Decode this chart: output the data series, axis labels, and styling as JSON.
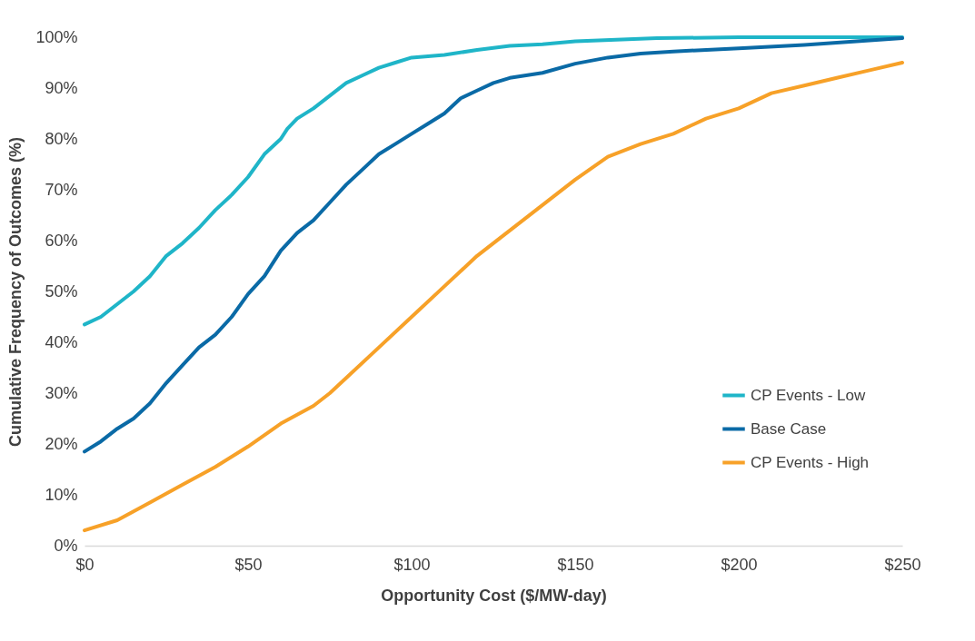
{
  "chart_data": {
    "type": "line",
    "xlabel": "Opportunity Cost ($/MW-day)",
    "ylabel": "Cumulative Frequency of Outcomes (%)",
    "xlim": [
      0,
      250
    ],
    "ylim": [
      0,
      100
    ],
    "xticks": [
      {
        "value": 0,
        "label": "$0"
      },
      {
        "value": 50,
        "label": "$50"
      },
      {
        "value": 100,
        "label": "$100"
      },
      {
        "value": 150,
        "label": "$150"
      },
      {
        "value": 200,
        "label": "$200"
      },
      {
        "value": 250,
        "label": "$250"
      }
    ],
    "yticks": [
      {
        "value": 0,
        "label": "0%"
      },
      {
        "value": 10,
        "label": "10%"
      },
      {
        "value": 20,
        "label": "20%"
      },
      {
        "value": 30,
        "label": "30%"
      },
      {
        "value": 40,
        "label": "40%"
      },
      {
        "value": 50,
        "label": "50%"
      },
      {
        "value": 60,
        "label": "60%"
      },
      {
        "value": 70,
        "label": "70%"
      },
      {
        "value": 80,
        "label": "80%"
      },
      {
        "value": 90,
        "label": "90%"
      },
      {
        "value": 100,
        "label": "100%"
      }
    ],
    "grid": false,
    "legend": "bottom right",
    "marker": "none",
    "line_style": "solid",
    "series": [
      {
        "name": "CP Events - Low",
        "color": "#1fb5c8",
        "x": [
          0,
          5,
          10,
          15,
          20,
          25,
          30,
          35,
          40,
          45,
          50,
          55,
          60,
          62,
          65,
          70,
          75,
          80,
          85,
          90,
          95,
          100,
          110,
          120,
          130,
          140,
          150,
          175,
          200,
          250
        ],
        "values": [
          43.5,
          45,
          47.5,
          50,
          53,
          57,
          59.5,
          62.5,
          66,
          69,
          72.5,
          77,
          80,
          82,
          84,
          86,
          88.5,
          91,
          92.5,
          94,
          95,
          96,
          96.5,
          97.5,
          98.3,
          98.6,
          99.2,
          99.8,
          100,
          100
        ]
      },
      {
        "name": "Base Case",
        "color": "#0a6aa6",
        "x": [
          0,
          5,
          10,
          15,
          20,
          25,
          30,
          35,
          40,
          45,
          50,
          55,
          60,
          65,
          70,
          75,
          80,
          85,
          90,
          95,
          100,
          105,
          110,
          115,
          120,
          125,
          130,
          140,
          150,
          160,
          170,
          180,
          200,
          220,
          250
        ],
        "values": [
          18.5,
          20.5,
          23,
          25,
          28,
          32,
          35.5,
          39,
          41.5,
          45,
          49.5,
          53,
          58,
          61.5,
          64,
          67.5,
          71,
          74,
          77,
          79,
          81,
          83,
          85,
          88,
          89.5,
          91,
          92,
          93,
          94.8,
          96,
          96.8,
          97.2,
          97.8,
          98.5,
          99.8
        ]
      },
      {
        "name": "CP Events - High",
        "color": "#f7a128",
        "x": [
          0,
          10,
          20,
          30,
          40,
          50,
          60,
          70,
          75,
          80,
          90,
          100,
          110,
          120,
          130,
          140,
          150,
          160,
          170,
          180,
          190,
          200,
          210,
          220,
          230,
          240,
          250
        ],
        "values": [
          3,
          5,
          8.5,
          12,
          15.5,
          19.5,
          24,
          27.5,
          30,
          33,
          39,
          45,
          51,
          57,
          62,
          67,
          72,
          76.5,
          79,
          81,
          84,
          86,
          89,
          90.5,
          92,
          93.5,
          95
        ]
      }
    ]
  }
}
